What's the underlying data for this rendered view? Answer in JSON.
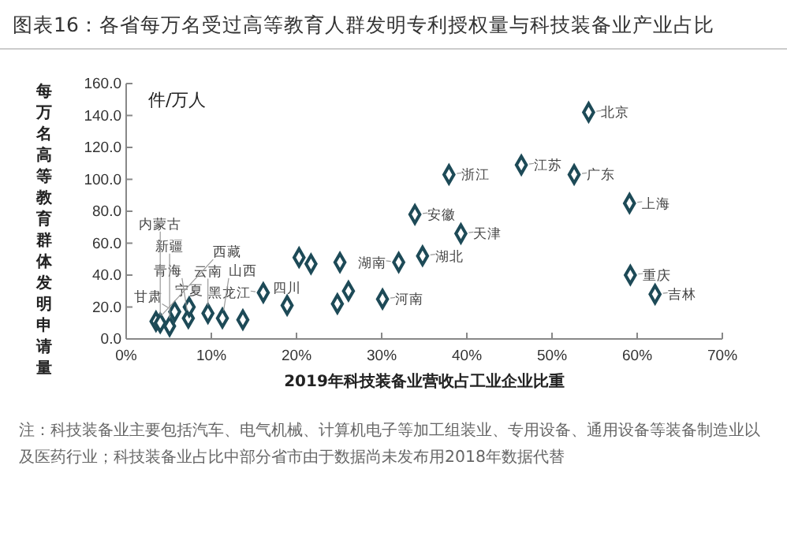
{
  "chart_data": {
    "type": "scatter",
    "title": "图表16：各省每万名受过高等教育人群发明专利授权量与科技装备业产业占比",
    "xlabel": "2019年科技装备业营收占工业企业比重",
    "ylabel": "每万名高等教育群体发明申请量",
    "x": [
      54.3,
      37.9,
      46.4,
      52.6,
      59.1,
      33.9,
      39.3,
      34.8,
      59.2,
      62.1,
      3.5,
      4.0,
      5.1,
      5.7,
      7.3,
      7.4,
      9.6,
      11.3,
      20.3,
      21.7,
      25.1,
      16.1,
      18.9,
      24.8,
      26.1,
      30.1,
      32.0,
      13.7
    ],
    "series": [
      {
        "color": "#1d4a57",
        "values": [
          142,
          103,
          109,
          103,
          85,
          78,
          66,
          52,
          40,
          28,
          11,
          10,
          8,
          17,
          13,
          20,
          16,
          13,
          51,
          47,
          48,
          29,
          21,
          22,
          30,
          25,
          48,
          12
        ]
      }
    ],
    "marker": "diamond",
    "xlim": [
      0,
      70
    ],
    "xticks": [
      {
        "value": 0,
        "label": "0%"
      },
      {
        "value": 10,
        "label": "10%"
      },
      {
        "value": 20,
        "label": "20%"
      },
      {
        "value": 30,
        "label": "30%"
      },
      {
        "value": 40,
        "label": "40%"
      },
      {
        "value": 50,
        "label": "50%"
      },
      {
        "value": 60,
        "label": "60%"
      },
      {
        "value": 70,
        "label": "70%"
      }
    ],
    "ylim": [
      0,
      160
    ],
    "yticks": [
      {
        "value": 0,
        "label": "0.0"
      },
      {
        "value": 20,
        "label": "20.0"
      },
      {
        "value": 40,
        "label": "40.0"
      },
      {
        "value": 60,
        "label": "60.0"
      },
      {
        "value": 80,
        "label": "80.0"
      },
      {
        "value": 100,
        "label": "100.0"
      },
      {
        "value": 120,
        "label": "120.0"
      },
      {
        "value": 140,
        "label": "140.0"
      },
      {
        "value": 160,
        "label": "160.0"
      }
    ],
    "grid": false,
    "annotations": [
      "件/万人",
      {
        "text": "北京",
        "x": 54.3,
        "y": 142
      },
      {
        "text": "浙江",
        "x": 37.9,
        "y": 103
      },
      {
        "text": "江苏",
        "x": 46.4,
        "y": 109
      },
      {
        "text": "广东",
        "x": 52.6,
        "y": 103
      },
      {
        "text": "上海",
        "x": 59.1,
        "y": 85
      },
      {
        "text": "安徽",
        "x": 33.9,
        "y": 78
      },
      {
        "text": "天津",
        "x": 39.3,
        "y": 66
      },
      {
        "text": "湖北",
        "x": 34.8,
        "y": 52
      },
      {
        "text": "重庆",
        "x": 59.2,
        "y": 40
      },
      {
        "text": "吉林",
        "x": 62.1,
        "y": 28
      },
      {
        "text": "湖南",
        "x": 32.0,
        "y": 48
      },
      {
        "text": "河南",
        "x": 30.1,
        "y": 25
      },
      {
        "text": "四川",
        "x": 18.9,
        "y": 21
      },
      {
        "text": "黑龙江",
        "x": 16.1,
        "y": 29
      },
      {
        "text": "甘肃",
        "x": 5.7,
        "y": 17
      },
      {
        "text": "宁夏",
        "x": 7.4,
        "y": 20
      },
      {
        "text": "云南",
        "x": 9.6,
        "y": 16
      },
      {
        "text": "山西",
        "x": 11.3,
        "y": 13
      },
      {
        "text": "青海",
        "x": 7.3,
        "y": 13
      },
      {
        "text": "新疆",
        "x": 5.1,
        "y": 8
      },
      {
        "text": "内蒙古",
        "x": 4.0,
        "y": 10
      },
      {
        "text": "西藏",
        "x": 3.5,
        "y": 11
      },
      "注：科技装备业主要包括汽车、电气机械、计算机电子等加工组装业、专用设备、通用设备等装备制造业以及医药行业；科技装备业占比中部分省市由于数据尚未发布用2018年数据代替"
    ]
  }
}
